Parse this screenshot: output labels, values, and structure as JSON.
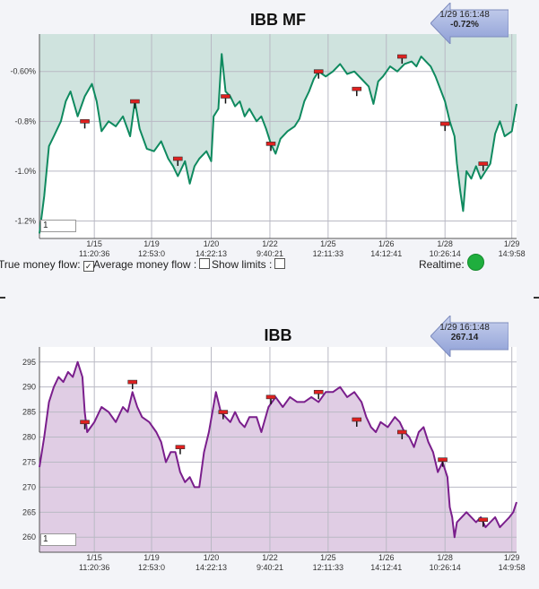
{
  "chart_data": [
    {
      "type": "area",
      "title": "IBB MF",
      "color": "#0f8a5f",
      "fill": "#cfe3de",
      "ylim": [
        -1.27,
        -0.45
      ],
      "yticks": [
        -1.2,
        -1.0,
        -0.8,
        -0.6
      ],
      "ytick_labels": [
        "-1.2%",
        "-1.0%",
        "-0.8%",
        "-0.60%"
      ],
      "xticks": [
        {
          "date": "1/15",
          "time": "11:20:36",
          "x": 0.115
        },
        {
          "date": "1/19",
          "time": "12:53:0",
          "x": 0.235
        },
        {
          "date": "1/20",
          "time": "14:22:13",
          "x": 0.36
        },
        {
          "date": "1/22",
          "time": "9:40:21",
          "x": 0.483
        },
        {
          "date": "1/25",
          "time": "12:11:33",
          "x": 0.605
        },
        {
          "date": "1/26",
          "time": "14:12:41",
          "x": 0.727
        },
        {
          "date": "1/28",
          "time": "10:26:14",
          "x": 0.85
        },
        {
          "date": "1/29",
          "time": "14:9:58",
          "x": 0.99
        }
      ],
      "series": [
        {
          "values": [
            {
              "x": 0.0,
              "y": -1.25
            },
            {
              "x": 0.01,
              "y": -1.1
            },
            {
              "x": 0.02,
              "y": -0.9
            },
            {
              "x": 0.03,
              "y": -0.86
            },
            {
              "x": 0.045,
              "y": -0.8
            },
            {
              "x": 0.055,
              "y": -0.72
            },
            {
              "x": 0.065,
              "y": -0.68
            },
            {
              "x": 0.08,
              "y": -0.78
            },
            {
              "x": 0.095,
              "y": -0.7
            },
            {
              "x": 0.11,
              "y": -0.65
            },
            {
              "x": 0.12,
              "y": -0.72
            },
            {
              "x": 0.13,
              "y": -0.84
            },
            {
              "x": 0.145,
              "y": -0.8
            },
            {
              "x": 0.16,
              "y": -0.82
            },
            {
              "x": 0.175,
              "y": -0.78
            },
            {
              "x": 0.19,
              "y": -0.86
            },
            {
              "x": 0.2,
              "y": -0.72
            },
            {
              "x": 0.21,
              "y": -0.83
            },
            {
              "x": 0.225,
              "y": -0.91
            },
            {
              "x": 0.24,
              "y": -0.92
            },
            {
              "x": 0.255,
              "y": -0.88
            },
            {
              "x": 0.27,
              "y": -0.95
            },
            {
              "x": 0.28,
              "y": -0.98
            },
            {
              "x": 0.29,
              "y": -1.02
            },
            {
              "x": 0.305,
              "y": -0.96
            },
            {
              "x": 0.315,
              "y": -1.05
            },
            {
              "x": 0.325,
              "y": -0.98
            },
            {
              "x": 0.335,
              "y": -0.95
            },
            {
              "x": 0.35,
              "y": -0.92
            },
            {
              "x": 0.36,
              "y": -0.96
            },
            {
              "x": 0.365,
              "y": -0.78
            },
            {
              "x": 0.375,
              "y": -0.75
            },
            {
              "x": 0.382,
              "y": -0.53
            },
            {
              "x": 0.39,
              "y": -0.68
            },
            {
              "x": 0.4,
              "y": -0.7
            },
            {
              "x": 0.41,
              "y": -0.74
            },
            {
              "x": 0.42,
              "y": -0.72
            },
            {
              "x": 0.43,
              "y": -0.78
            },
            {
              "x": 0.44,
              "y": -0.75
            },
            {
              "x": 0.455,
              "y": -0.8
            },
            {
              "x": 0.465,
              "y": -0.78
            },
            {
              "x": 0.475,
              "y": -0.83
            },
            {
              "x": 0.485,
              "y": -0.89
            },
            {
              "x": 0.495,
              "y": -0.93
            },
            {
              "x": 0.505,
              "y": -0.87
            },
            {
              "x": 0.52,
              "y": -0.84
            },
            {
              "x": 0.535,
              "y": -0.82
            },
            {
              "x": 0.545,
              "y": -0.79
            },
            {
              "x": 0.555,
              "y": -0.72
            },
            {
              "x": 0.565,
              "y": -0.68
            },
            {
              "x": 0.575,
              "y": -0.63
            },
            {
              "x": 0.585,
              "y": -0.6
            },
            {
              "x": 0.6,
              "y": -0.62
            },
            {
              "x": 0.615,
              "y": -0.6
            },
            {
              "x": 0.63,
              "y": -0.57
            },
            {
              "x": 0.645,
              "y": -0.61
            },
            {
              "x": 0.66,
              "y": -0.6
            },
            {
              "x": 0.675,
              "y": -0.63
            },
            {
              "x": 0.69,
              "y": -0.66
            },
            {
              "x": 0.7,
              "y": -0.73
            },
            {
              "x": 0.71,
              "y": -0.64
            },
            {
              "x": 0.72,
              "y": -0.62
            },
            {
              "x": 0.735,
              "y": -0.58
            },
            {
              "x": 0.75,
              "y": -0.6
            },
            {
              "x": 0.765,
              "y": -0.57
            },
            {
              "x": 0.78,
              "y": -0.56
            },
            {
              "x": 0.79,
              "y": -0.58
            },
            {
              "x": 0.8,
              "y": -0.54
            },
            {
              "x": 0.81,
              "y": -0.56
            },
            {
              "x": 0.82,
              "y": -0.58
            },
            {
              "x": 0.83,
              "y": -0.62
            },
            {
              "x": 0.84,
              "y": -0.67
            },
            {
              "x": 0.85,
              "y": -0.72
            },
            {
              "x": 0.86,
              "y": -0.8
            },
            {
              "x": 0.87,
              "y": -0.86
            },
            {
              "x": 0.875,
              "y": -0.97
            },
            {
              "x": 0.882,
              "y": -1.08
            },
            {
              "x": 0.888,
              "y": -1.16
            },
            {
              "x": 0.895,
              "y": -1.0
            },
            {
              "x": 0.905,
              "y": -1.03
            },
            {
              "x": 0.915,
              "y": -0.98
            },
            {
              "x": 0.925,
              "y": -1.03
            },
            {
              "x": 0.935,
              "y": -1.0
            },
            {
              "x": 0.945,
              "y": -0.97
            },
            {
              "x": 0.955,
              "y": -0.85
            },
            {
              "x": 0.965,
              "y": -0.8
            },
            {
              "x": 0.975,
              "y": -0.86
            },
            {
              "x": 0.99,
              "y": -0.84
            },
            {
              "x": 1.0,
              "y": -0.73
            }
          ]
        }
      ],
      "markers": [
        {
          "x": 0.095,
          "y": -0.8
        },
        {
          "x": 0.2,
          "y": -0.72
        },
        {
          "x": 0.29,
          "y": -0.95
        },
        {
          "x": 0.39,
          "y": -0.7
        },
        {
          "x": 0.485,
          "y": -0.89
        },
        {
          "x": 0.585,
          "y": -0.6
        },
        {
          "x": 0.665,
          "y": -0.67
        },
        {
          "x": 0.76,
          "y": -0.54
        },
        {
          "x": 0.85,
          "y": -0.81
        },
        {
          "x": 0.93,
          "y": -0.97
        }
      ],
      "badge": {
        "time": "1/29 16:1:48",
        "value": "-0.72%"
      },
      "input_value": "1"
    },
    {
      "type": "area",
      "title": "IBB",
      "color": "#7a1e8c",
      "fill": "#e0cde4",
      "ylim": [
        257,
        298
      ],
      "yticks": [
        260,
        265,
        270,
        275,
        280,
        285,
        290,
        295
      ],
      "ytick_labels": [
        "260",
        "265",
        "270",
        "275",
        "280",
        "285",
        "290",
        "295"
      ],
      "xticks": [
        {
          "date": "1/15",
          "time": "11:20:36",
          "x": 0.115
        },
        {
          "date": "1/19",
          "time": "12:53:0",
          "x": 0.235
        },
        {
          "date": "1/20",
          "time": "14:22:13",
          "x": 0.36
        },
        {
          "date": "1/22",
          "time": "9:40:21",
          "x": 0.483
        },
        {
          "date": "1/25",
          "time": "12:11:33",
          "x": 0.605
        },
        {
          "date": "1/26",
          "time": "14:12:41",
          "x": 0.727
        },
        {
          "date": "1/28",
          "time": "10:26:14",
          "x": 0.85
        },
        {
          "date": "1/29",
          "time": "14:9:58",
          "x": 0.99
        }
      ],
      "series": [
        {
          "values": [
            {
              "x": 0.0,
              "y": 274
            },
            {
              "x": 0.01,
              "y": 280
            },
            {
              "x": 0.02,
              "y": 287
            },
            {
              "x": 0.03,
              "y": 290
            },
            {
              "x": 0.04,
              "y": 292
            },
            {
              "x": 0.05,
              "y": 291
            },
            {
              "x": 0.06,
              "y": 293
            },
            {
              "x": 0.07,
              "y": 292
            },
            {
              "x": 0.08,
              "y": 295
            },
            {
              "x": 0.09,
              "y": 292
            },
            {
              "x": 0.095,
              "y": 285
            },
            {
              "x": 0.1,
              "y": 281
            },
            {
              "x": 0.115,
              "y": 283
            },
            {
              "x": 0.13,
              "y": 286
            },
            {
              "x": 0.145,
              "y": 285
            },
            {
              "x": 0.16,
              "y": 283
            },
            {
              "x": 0.175,
              "y": 286
            },
            {
              "x": 0.185,
              "y": 285
            },
            {
              "x": 0.195,
              "y": 289
            },
            {
              "x": 0.205,
              "y": 286
            },
            {
              "x": 0.215,
              "y": 284
            },
            {
              "x": 0.23,
              "y": 283
            },
            {
              "x": 0.245,
              "y": 281
            },
            {
              "x": 0.255,
              "y": 279
            },
            {
              "x": 0.265,
              "y": 275
            },
            {
              "x": 0.275,
              "y": 277
            },
            {
              "x": 0.285,
              "y": 277
            },
            {
              "x": 0.295,
              "y": 273
            },
            {
              "x": 0.305,
              "y": 271
            },
            {
              "x": 0.315,
              "y": 272
            },
            {
              "x": 0.325,
              "y": 270
            },
            {
              "x": 0.335,
              "y": 270
            },
            {
              "x": 0.345,
              "y": 277
            },
            {
              "x": 0.355,
              "y": 281
            },
            {
              "x": 0.37,
              "y": 289
            },
            {
              "x": 0.38,
              "y": 285
            },
            {
              "x": 0.39,
              "y": 284
            },
            {
              "x": 0.4,
              "y": 283
            },
            {
              "x": 0.41,
              "y": 285
            },
            {
              "x": 0.42,
              "y": 283
            },
            {
              "x": 0.43,
              "y": 282
            },
            {
              "x": 0.44,
              "y": 284
            },
            {
              "x": 0.455,
              "y": 284
            },
            {
              "x": 0.465,
              "y": 281
            },
            {
              "x": 0.48,
              "y": 286
            },
            {
              "x": 0.495,
              "y": 288
            },
            {
              "x": 0.51,
              "y": 286
            },
            {
              "x": 0.525,
              "y": 288
            },
            {
              "x": 0.54,
              "y": 287
            },
            {
              "x": 0.555,
              "y": 287
            },
            {
              "x": 0.57,
              "y": 288
            },
            {
              "x": 0.585,
              "y": 287
            },
            {
              "x": 0.6,
              "y": 289
            },
            {
              "x": 0.615,
              "y": 289
            },
            {
              "x": 0.63,
              "y": 290
            },
            {
              "x": 0.645,
              "y": 288
            },
            {
              "x": 0.66,
              "y": 289
            },
            {
              "x": 0.675,
              "y": 287
            },
            {
              "x": 0.685,
              "y": 284
            },
            {
              "x": 0.695,
              "y": 282
            },
            {
              "x": 0.705,
              "y": 281
            },
            {
              "x": 0.715,
              "y": 283
            },
            {
              "x": 0.73,
              "y": 282
            },
            {
              "x": 0.745,
              "y": 284
            },
            {
              "x": 0.755,
              "y": 283
            },
            {
              "x": 0.765,
              "y": 281
            },
            {
              "x": 0.775,
              "y": 280
            },
            {
              "x": 0.785,
              "y": 278
            },
            {
              "x": 0.795,
              "y": 281
            },
            {
              "x": 0.805,
              "y": 282
            },
            {
              "x": 0.815,
              "y": 279
            },
            {
              "x": 0.825,
              "y": 277
            },
            {
              "x": 0.835,
              "y": 273
            },
            {
              "x": 0.845,
              "y": 275
            },
            {
              "x": 0.855,
              "y": 272
            },
            {
              "x": 0.86,
              "y": 266
            },
            {
              "x": 0.865,
              "y": 264
            },
            {
              "x": 0.87,
              "y": 260
            },
            {
              "x": 0.875,
              "y": 263
            },
            {
              "x": 0.885,
              "y": 264
            },
            {
              "x": 0.895,
              "y": 265
            },
            {
              "x": 0.905,
              "y": 264
            },
            {
              "x": 0.915,
              "y": 263
            },
            {
              "x": 0.925,
              "y": 264
            },
            {
              "x": 0.935,
              "y": 262
            },
            {
              "x": 0.945,
              "y": 263
            },
            {
              "x": 0.955,
              "y": 264
            },
            {
              "x": 0.965,
              "y": 262
            },
            {
              "x": 0.975,
              "y": 263
            },
            {
              "x": 0.985,
              "y": 264
            },
            {
              "x": 0.993,
              "y": 265
            },
            {
              "x": 1.0,
              "y": 267
            }
          ]
        }
      ],
      "markers": [
        {
          "x": 0.095,
          "y": 283
        },
        {
          "x": 0.195,
          "y": 291
        },
        {
          "x": 0.295,
          "y": 278
        },
        {
          "x": 0.385,
          "y": 285
        },
        {
          "x": 0.485,
          "y": 288
        },
        {
          "x": 0.585,
          "y": 289
        },
        {
          "x": 0.665,
          "y": 283.5
        },
        {
          "x": 0.76,
          "y": 281
        },
        {
          "x": 0.845,
          "y": 275.5
        },
        {
          "x": 0.93,
          "y": 263.5
        }
      ],
      "badge": {
        "time": "1/29 16:1:48",
        "value": "267.14"
      },
      "input_value": "1"
    }
  ],
  "controls": {
    "true_money_flow": "True money flow:",
    "true_money_flow_checked": "✓",
    "average_money_flow": "Average money flow :",
    "show_limits": "Show limits :",
    "realtime": "Realtime:",
    "realtime_color": "#1fae3e"
  }
}
